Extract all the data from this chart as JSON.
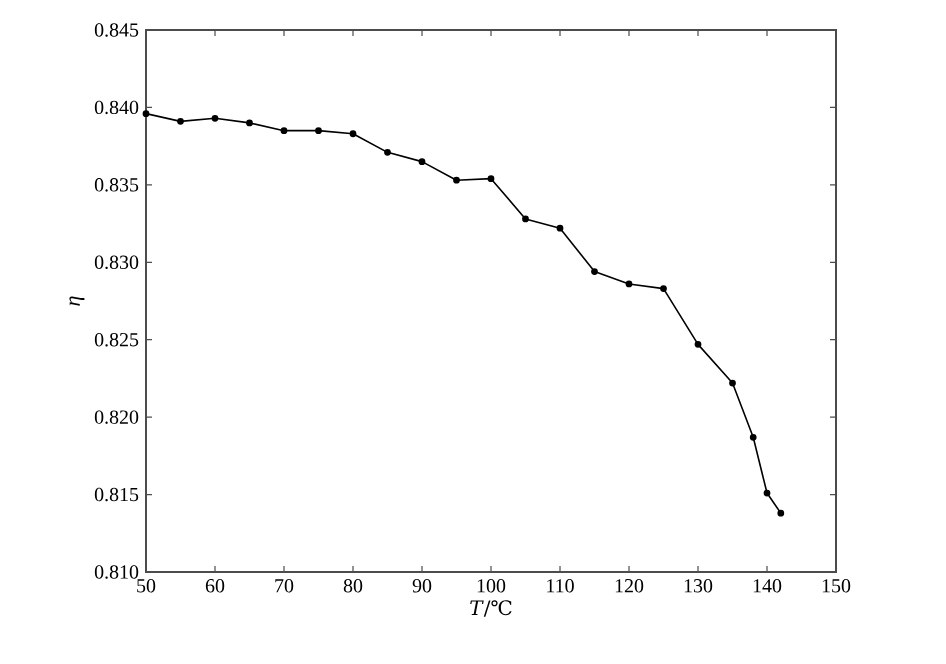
{
  "chart_data": {
    "type": "line",
    "xlabel": "*T*/℃",
    "ylabel": "*η*",
    "x": [
      50,
      55,
      60,
      65,
      70,
      75,
      80,
      85,
      90,
      95,
      100,
      105,
      110,
      115,
      120,
      125,
      130,
      135,
      138,
      140,
      142
    ],
    "series": [
      {
        "color": "#000000",
        "values": [
          0.8396,
          0.8391,
          0.8393,
          0.839,
          0.8385,
          0.8385,
          0.8383,
          0.8371,
          0.8365,
          0.8353,
          0.8354,
          0.8328,
          0.8322,
          0.8294,
          0.8286,
          0.8283,
          0.8247,
          0.8222,
          0.8187,
          0.8151,
          0.8138
        ]
      }
    ],
    "xlim": [
      50,
      150
    ],
    "ylim": [
      0.81,
      0.845
    ],
    "xticks": [
      50,
      60,
      70,
      80,
      90,
      100,
      110,
      120,
      130,
      140,
      150
    ],
    "yticks": [
      {
        "value": 0.81,
        "label": "0.810"
      },
      {
        "value": 0.815,
        "label": "0.815"
      },
      {
        "value": 0.82,
        "label": "0.820"
      },
      {
        "value": 0.825,
        "label": "0.825"
      },
      {
        "value": 0.83,
        "label": "0.830"
      },
      {
        "value": 0.835,
        "label": "0.835"
      },
      {
        "value": 0.84,
        "label": "0.840"
      },
      {
        "value": 0.845,
        "label": "0.845"
      }
    ],
    "marker": "circle",
    "line_style": "solid"
  }
}
